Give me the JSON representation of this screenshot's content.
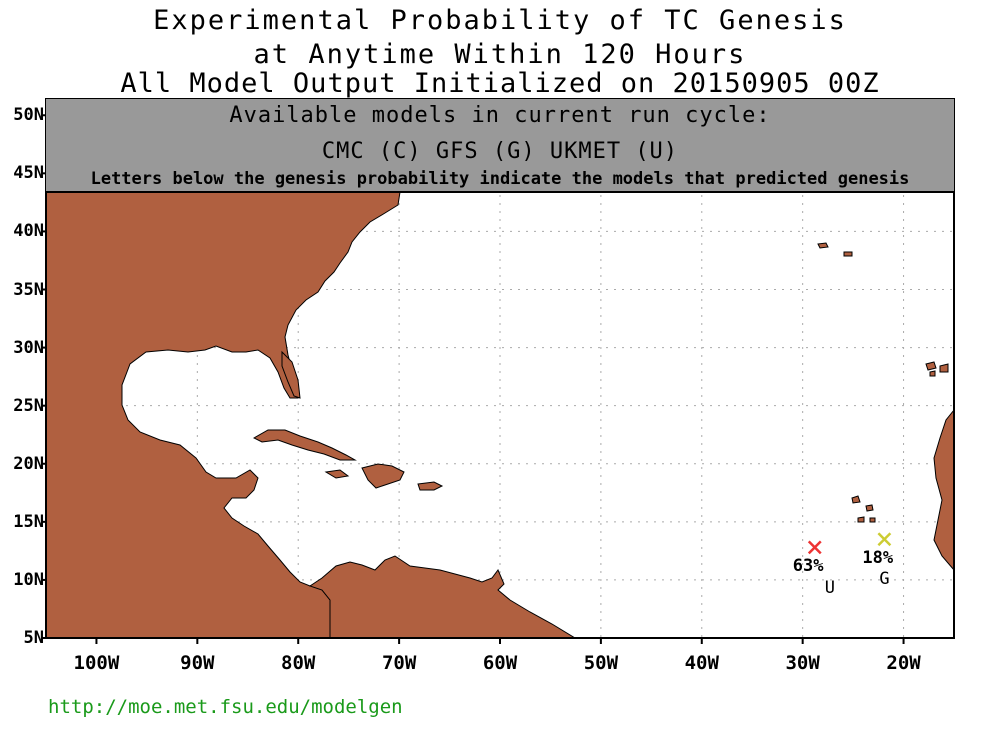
{
  "title": {
    "line1": "Experimental Probability of TC Genesis",
    "line2": "at Anytime Within 120 Hours",
    "line3": "All Model Output Initialized on 20150905 00Z"
  },
  "legend": {
    "heading": "Available models in current run cycle:",
    "models": "CMC (C) GFS (G)  UKMET (U)",
    "note": "Letters below the genesis probability indicate the models that predicted genesis"
  },
  "axes": {
    "lat_labels": [
      "50N",
      "45N",
      "40N",
      "35N",
      "30N",
      "25N",
      "20N",
      "15N",
      "10N",
      "5N"
    ],
    "lon_labels": [
      "100W",
      "90W",
      "80W",
      "70W",
      "60W",
      "50W",
      "40W",
      "30W",
      "20W"
    ]
  },
  "genesis_points": [
    {
      "probability": "63%",
      "models": "U",
      "lat": 12.8,
      "lon": -28.8,
      "color": "#ee3333"
    },
    {
      "probability": "18%",
      "models": "G",
      "lat": 13.5,
      "lon": -21.9,
      "color": "#cccc33"
    }
  ],
  "colors": {
    "land": "#b06040",
    "ocean": "#ffffff",
    "grid": "#aaaaaa",
    "url": "#1a9a1a"
  },
  "footer": {
    "url": "http://moe.met.fsu.edu/modelgen"
  }
}
